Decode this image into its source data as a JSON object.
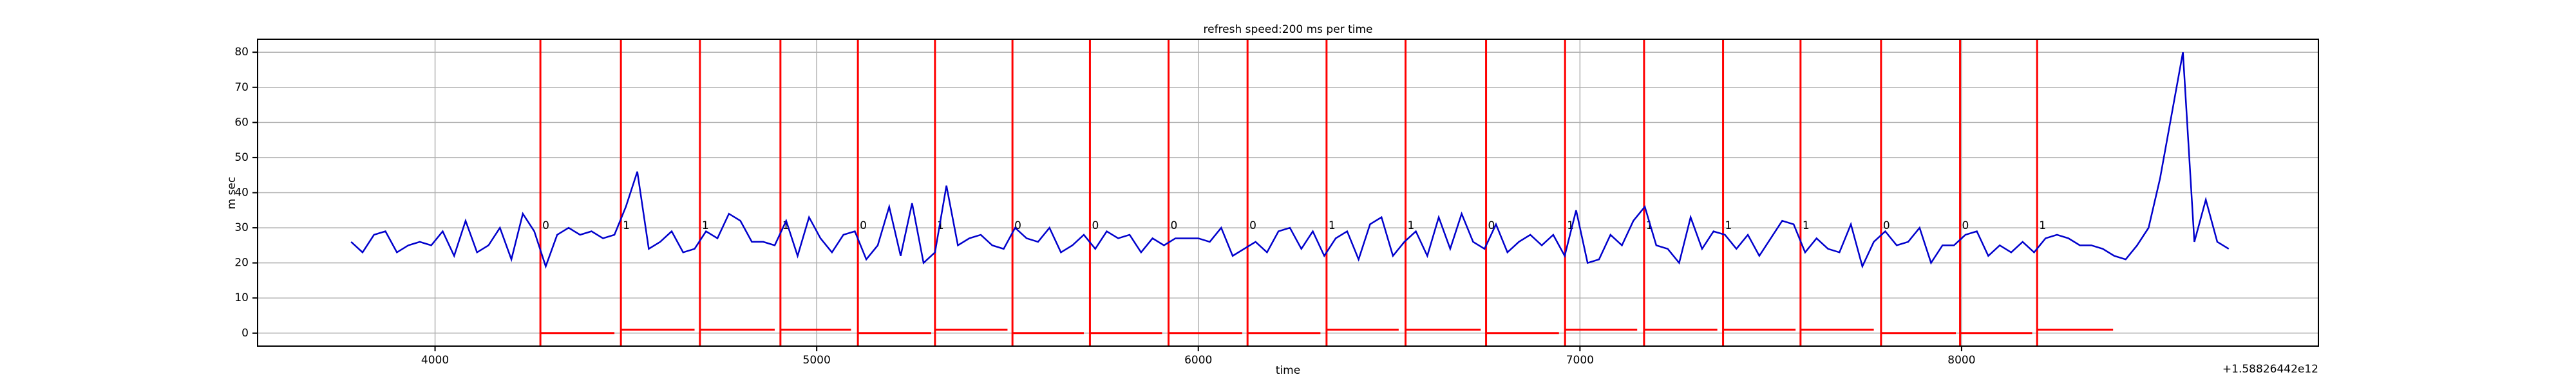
{
  "chart_data": {
    "type": "line",
    "title": "refresh speed:200 ms per time",
    "x_label": "time",
    "y_label": "m sec",
    "x_offset_label": "+1.58826442e12",
    "xlim": [
      3535,
      8935
    ],
    "xticks": [
      4000,
      5000,
      6000,
      7000,
      8000
    ],
    "ylim": [
      -3.7,
      83.7
    ],
    "yticks": [
      0,
      10,
      20,
      30,
      40,
      50,
      60,
      70,
      80
    ],
    "grid": true,
    "series": [
      {
        "color": "#0000cc",
        "x": [
          3780,
          3810,
          3840,
          3870,
          3900,
          3930,
          3960,
          3990,
          4020,
          4050,
          4080,
          4110,
          4140,
          4170,
          4200,
          4230,
          4260,
          4290,
          4320,
          4350,
          4380,
          4410,
          4440,
          4470,
          4500,
          4530,
          4560,
          4590,
          4620,
          4650,
          4680,
          4710,
          4740,
          4770,
          4800,
          4830,
          4860,
          4890,
          4920,
          4950,
          4980,
          5010,
          5040,
          5070,
          5100,
          5130,
          5160,
          5190,
          5220,
          5250,
          5280,
          5310,
          5340,
          5370,
          5400,
          5430,
          5460,
          5490,
          5520,
          5550,
          5580,
          5610,
          5640,
          5670,
          5700,
          5730,
          5760,
          5790,
          5820,
          5850,
          5880,
          5910,
          5940,
          5970,
          6000,
          6030,
          6060,
          6090,
          6120,
          6150,
          6180,
          6210,
          6240,
          6270,
          6300,
          6330,
          6360,
          6390,
          6420,
          6450,
          6480,
          6510,
          6540,
          6570,
          6600,
          6630,
          6660,
          6690,
          6720,
          6750,
          6780,
          6810,
          6840,
          6870,
          6900,
          6930,
          6960,
          6990,
          7020,
          7050,
          7080,
          7110,
          7140,
          7170,
          7200,
          7230,
          7260,
          7290,
          7320,
          7350,
          7380,
          7410,
          7440,
          7470,
          7500,
          7530,
          7560,
          7590,
          7620,
          7650,
          7680,
          7710,
          7740,
          7770,
          7800,
          7830,
          7860,
          7890,
          7920,
          7950,
          7980,
          8010,
          8040,
          8070,
          8100,
          8130,
          8160,
          8190,
          8220,
          8250,
          8280,
          8310,
          8340,
          8370,
          8400,
          8430,
          8460,
          8490,
          8520,
          8550,
          8580,
          8610,
          8640,
          8670,
          8700
        ],
        "values": [
          26,
          23,
          28,
          29,
          23,
          25,
          26,
          25,
          29,
          22,
          32,
          23,
          25,
          30,
          21,
          34,
          29,
          19,
          28,
          30,
          28,
          29,
          27,
          28,
          36,
          46,
          24,
          26,
          29,
          23,
          24,
          29,
          27,
          34,
          32,
          26,
          26,
          25,
          32,
          22,
          33,
          27,
          23,
          28,
          29,
          21,
          25,
          36,
          22,
          37,
          20,
          23,
          42,
          25,
          27,
          28,
          25,
          24,
          30,
          27,
          26,
          30,
          23,
          25,
          28,
          24,
          29,
          27,
          28,
          23,
          27,
          25,
          27,
          27,
          27,
          26,
          30,
          22,
          24,
          26,
          23,
          29,
          30,
          24,
          29,
          22,
          27,
          29,
          21,
          31,
          33,
          22,
          26,
          29,
          22,
          33,
          24,
          34,
          26,
          24,
          31,
          23,
          26,
          28,
          25,
          28,
          22,
          35,
          20,
          21,
          28,
          25,
          32,
          36,
          25,
          24,
          20,
          33,
          24,
          29,
          28,
          24,
          28,
          22,
          27,
          32,
          31,
          23,
          27,
          24,
          23,
          31,
          19,
          26,
          29,
          25,
          26,
          30,
          20,
          25,
          25,
          28,
          29,
          22,
          25,
          23,
          26,
          23,
          27,
          28,
          27,
          25,
          25,
          24,
          22,
          21,
          25,
          30,
          44,
          62,
          80,
          26,
          38,
          26,
          24
        ]
      }
    ],
    "events": {
      "color": "#ff0000",
      "x": [
        4276,
        4487,
        4694,
        4905,
        5108,
        5310,
        5513,
        5716,
        5922,
        6129,
        6336,
        6543,
        6754,
        6961,
        7168,
        7375,
        7578,
        7789,
        7996,
        8198
      ],
      "x_end": [
        4470,
        4680,
        4890,
        5090,
        5300,
        5500,
        5700,
        5905,
        6115,
        6320,
        6525,
        6740,
        6945,
        7150,
        7360,
        7565,
        7770,
        7985,
        8185,
        8397
      ],
      "values": [
        0,
        1,
        1,
        1,
        0,
        1,
        0,
        0,
        0,
        0,
        1,
        1,
        0,
        1,
        1,
        1,
        1,
        0,
        0,
        1
      ]
    }
  }
}
